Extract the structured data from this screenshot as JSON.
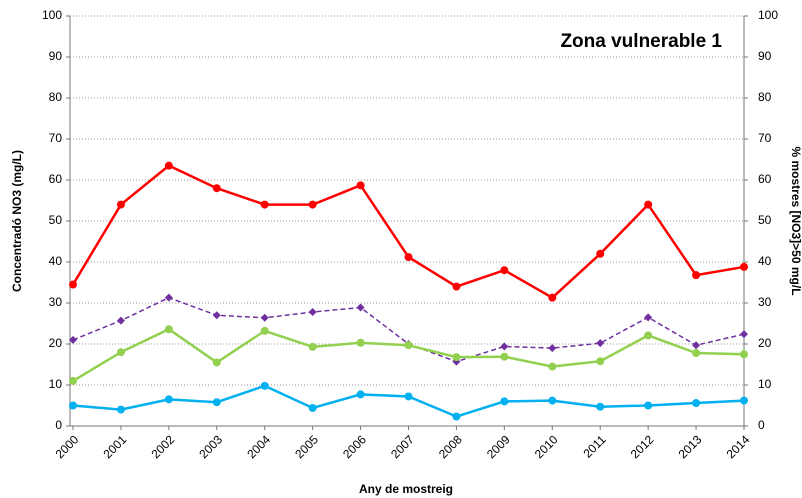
{
  "chart_data": {
    "type": "line",
    "title": "Zona vulnerable 1",
    "x_label": "Any de mostreig",
    "y_label": "Concentradó NO3 (mg/L)",
    "y2_label": "% mostres [NO3]>50 mg/L",
    "categories": [
      "2000",
      "2001",
      "2002",
      "2003",
      "2004",
      "2005",
      "2006",
      "2007",
      "2008",
      "2009",
      "2010",
      "2011",
      "2012",
      "2013",
      "2014"
    ],
    "ylim": [
      0,
      100
    ],
    "yticks": [
      0,
      10,
      20,
      30,
      40,
      50,
      60,
      70,
      80,
      90,
      100
    ],
    "y2lim": [
      0,
      100
    ],
    "y2ticks": [
      0,
      10,
      20,
      30,
      40,
      50,
      60,
      70,
      80,
      90,
      100
    ],
    "grid": true,
    "series": [
      {
        "color": "#ff0000",
        "axis": "y2",
        "linestyle": "solid",
        "marker": "circle",
        "values": [
          34.5,
          54,
          63.5,
          58,
          54,
          54,
          58.7,
          41.2,
          34,
          38,
          31.3,
          42,
          54,
          36.8,
          38.8
        ]
      },
      {
        "color": "#7030a0",
        "linestyle": "dashed",
        "marker": "diamond",
        "values": [
          21,
          25.7,
          31.3,
          27,
          26.4,
          27.8,
          28.9,
          20,
          15.7,
          19.4,
          19,
          20.2,
          26.5,
          19.7,
          22.4
        ]
      },
      {
        "color": "#92d050",
        "linestyle": "solid",
        "marker": "circle",
        "values": [
          11,
          18,
          23.6,
          15.5,
          23.2,
          19.3,
          20.3,
          19.7,
          16.8,
          16.9,
          14.5,
          15.8,
          22.1,
          17.8,
          17.5
        ]
      },
      {
        "color": "#00b0f0",
        "linestyle": "solid",
        "marker": "circle",
        "values": [
          5,
          4,
          6.5,
          5.8,
          9.8,
          4.4,
          7.7,
          7.2,
          2.3,
          6,
          6.2,
          4.7,
          5,
          5.6,
          6.2
        ]
      }
    ]
  }
}
